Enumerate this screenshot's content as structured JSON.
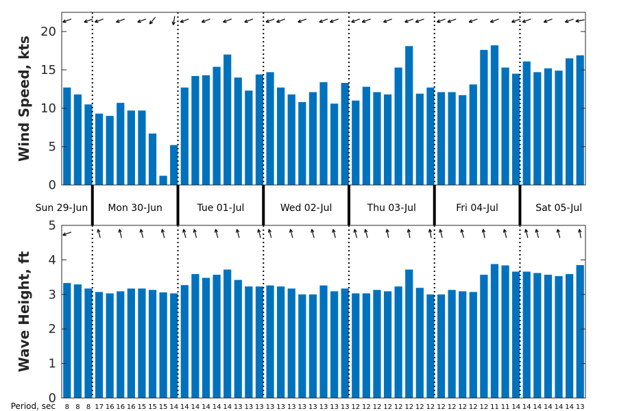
{
  "colors": {
    "bar": "#0072BD",
    "axis": "#262626",
    "divider": "#000000"
  },
  "chart_data": [
    {
      "type": "bar",
      "ylabel": "Wind Speed, kts",
      "ylim": [
        0,
        22.5
      ],
      "yticks": [
        0,
        5,
        10,
        15,
        20
      ],
      "values": [
        12.7,
        11.8,
        10.5,
        9.3,
        9.0,
        10.7,
        9.7,
        9.7,
        6.7,
        1.2,
        5.2,
        12.7,
        14.2,
        14.3,
        15.4,
        17.0,
        14.0,
        12.3,
        14.4,
        14.7,
        12.7,
        11.8,
        10.8,
        12.1,
        13.4,
        10.6,
        13.3,
        11.0,
        12.8,
        12.1,
        11.8,
        15.3,
        18.1,
        11.9,
        12.7,
        12.1,
        12.1,
        11.7,
        13.1,
        17.6,
        18.2,
        15.3,
        14.5,
        16.1,
        14.7,
        15.2,
        14.9,
        16.5,
        16.9
      ],
      "direction_arrows": [
        {
          "index": 0,
          "angle": 200
        },
        {
          "index": 2,
          "angle": 200
        },
        {
          "index": 3,
          "angle": 200
        },
        {
          "index": 5,
          "angle": 200
        },
        {
          "index": 7,
          "angle": 200
        },
        {
          "index": 8,
          "angle": 230
        },
        {
          "index": 10,
          "angle": 260
        },
        {
          "index": 11,
          "angle": 200
        },
        {
          "index": 13,
          "angle": 200
        },
        {
          "index": 15,
          "angle": 200
        },
        {
          "index": 17,
          "angle": 200
        },
        {
          "index": 19,
          "angle": 200
        },
        {
          "index": 20,
          "angle": 200
        },
        {
          "index": 22,
          "angle": 200
        },
        {
          "index": 24,
          "angle": 200
        },
        {
          "index": 25,
          "angle": 200
        },
        {
          "index": 27,
          "angle": 200
        },
        {
          "index": 28,
          "angle": 200
        },
        {
          "index": 30,
          "angle": 200
        },
        {
          "index": 32,
          "angle": 200
        },
        {
          "index": 33,
          "angle": 200
        },
        {
          "index": 35,
          "angle": 200
        },
        {
          "index": 36,
          "angle": 200
        },
        {
          "index": 38,
          "angle": 200
        },
        {
          "index": 40,
          "angle": 200
        },
        {
          "index": 42,
          "angle": 200
        },
        {
          "index": 43,
          "angle": 200
        },
        {
          "index": 45,
          "angle": 200
        },
        {
          "index": 47,
          "angle": 200
        },
        {
          "index": 48,
          "angle": 190
        }
      ]
    },
    {
      "type": "bar",
      "ylabel": "Wave Height, ft",
      "ylim": [
        0,
        5
      ],
      "yticks": [
        0,
        1,
        2,
        3,
        4,
        5
      ],
      "values": [
        3.33,
        3.29,
        3.17,
        3.07,
        3.03,
        3.09,
        3.17,
        3.17,
        3.13,
        3.06,
        3.03,
        3.27,
        3.59,
        3.48,
        3.57,
        3.72,
        3.42,
        3.23,
        3.23,
        3.26,
        3.23,
        3.17,
        3.0,
        3.0,
        3.26,
        3.09,
        3.17,
        3.03,
        3.03,
        3.13,
        3.09,
        3.23,
        3.72,
        3.19,
        3.0,
        3.0,
        3.13,
        3.09,
        3.07,
        3.57,
        3.88,
        3.84,
        3.66,
        3.66,
        3.62,
        3.57,
        3.53,
        3.59,
        3.85
      ],
      "direction_arrows": [
        {
          "index": 0,
          "angle": 200
        },
        {
          "index": 3,
          "angle": 105
        },
        {
          "index": 5,
          "angle": 105
        },
        {
          "index": 7,
          "angle": 105
        },
        {
          "index": 9,
          "angle": 105
        },
        {
          "index": 11,
          "angle": 105
        },
        {
          "index": 12,
          "angle": 105
        },
        {
          "index": 14,
          "angle": 105
        },
        {
          "index": 16,
          "angle": 105
        },
        {
          "index": 18,
          "angle": 105
        },
        {
          "index": 19,
          "angle": 105
        },
        {
          "index": 21,
          "angle": 105
        },
        {
          "index": 23,
          "angle": 105
        },
        {
          "index": 25,
          "angle": 105
        },
        {
          "index": 27,
          "angle": 105
        },
        {
          "index": 28,
          "angle": 105
        },
        {
          "index": 30,
          "angle": 100
        },
        {
          "index": 32,
          "angle": 100
        },
        {
          "index": 34,
          "angle": 100
        },
        {
          "index": 35,
          "angle": 105
        },
        {
          "index": 37,
          "angle": 105
        },
        {
          "index": 39,
          "angle": 100
        },
        {
          "index": 41,
          "angle": 105
        },
        {
          "index": 43,
          "angle": 105
        },
        {
          "index": 44,
          "angle": 105
        },
        {
          "index": 46,
          "angle": 105
        },
        {
          "index": 48,
          "angle": 100
        }
      ]
    }
  ],
  "day_labels": [
    "Sun 29-Jun",
    "Mon 30-Jun",
    "Tue 01-Jul",
    "Wed 02-Jul",
    "Thu 03-Jul",
    "Fri 04-Jul",
    "Sat 05-Jul"
  ],
  "day_start_indices": [
    3,
    11,
    19,
    27,
    35,
    43
  ],
  "period_title": "Period, sec",
  "periods": [
    8,
    8,
    8,
    17,
    16,
    16,
    16,
    15,
    15,
    15,
    14,
    14,
    14,
    14,
    14,
    14,
    13,
    13,
    13,
    13,
    13,
    13,
    13,
    13,
    13,
    13,
    13,
    12,
    12,
    12,
    12,
    12,
    12,
    12,
    12,
    12,
    12,
    12,
    12,
    12,
    11,
    11,
    14,
    14,
    14,
    14,
    14,
    14,
    13
  ]
}
